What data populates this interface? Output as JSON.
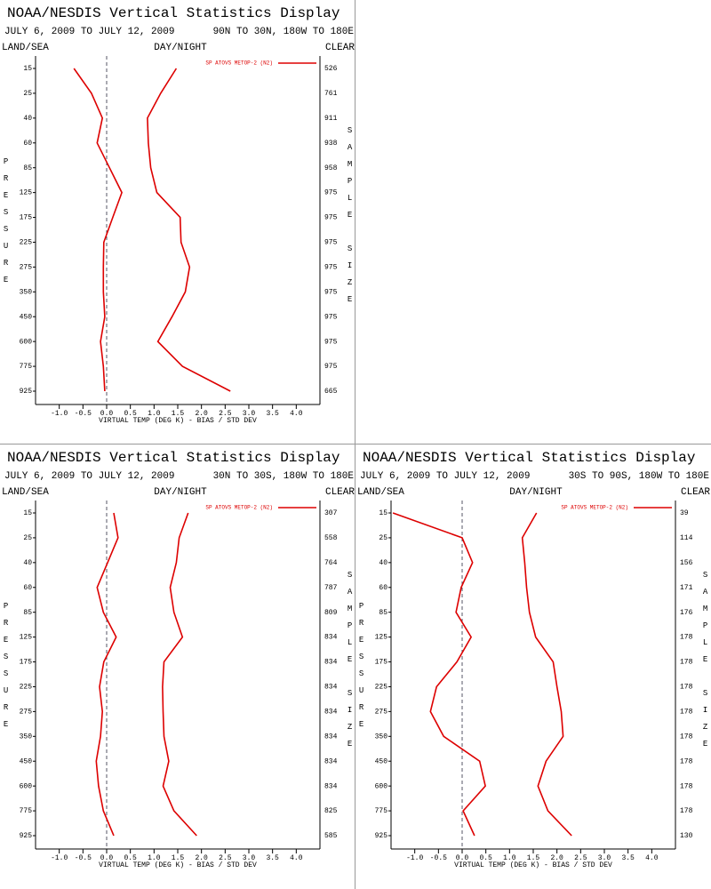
{
  "chart_data": [
    {
      "type": "line",
      "title": "NOAA/NESDIS Vertical Statistics Display",
      "date_range": "JULY 6, 2009 TO JULY 12, 2009",
      "region": "90N TO 30N, 180W TO 180E",
      "land_sea": "LAND/SEA",
      "day_night": "DAY/NIGHT",
      "clear": "CLEAR",
      "y_label": "PRESSURE",
      "y2_label": "SAMPLE SIZE",
      "x_label": "VIRTUAL TEMP (DEG K) - BIAS / STD DEV",
      "categories": [
        "15",
        "25",
        "40",
        "60",
        "85",
        "125",
        "175",
        "225",
        "275",
        "350",
        "450",
        "600",
        "775",
        "925"
      ],
      "sample_sizes": [
        526,
        761,
        911,
        938,
        958,
        975,
        975,
        975,
        975,
        975,
        975,
        975,
        975,
        665
      ],
      "series": [
        {
          "name": "SP ATOVS METOP-2 (N2)",
          "color": "#dd0000",
          "values": [
            -0.69,
            -0.32,
            -0.09,
            -0.2,
            0.06,
            0.32,
            0.13,
            -0.06,
            -0.07,
            -0.07,
            -0.04,
            -0.13,
            -0.07,
            -0.04
          ],
          "std_dev": [
            1.47,
            1.14,
            0.86,
            0.88,
            0.93,
            1.06,
            1.55,
            1.57,
            1.75,
            1.66,
            1.38,
            1.08,
            1.6,
            2.61
          ]
        }
      ],
      "xlim": [
        -1.5,
        4.5
      ],
      "xticks": [
        {
          "value": -1,
          "label": "-1.0"
        },
        -0.5,
        {
          "value": 0,
          "label": "0.0"
        },
        0.5,
        {
          "value": 1,
          "label": "1.0"
        },
        1.5,
        {
          "value": 2,
          "label": "2.0"
        },
        2.5,
        {
          "value": 3,
          "label": "3.0"
        },
        3.5,
        {
          "value": 4,
          "label": "4.0"
        }
      ],
      "zero_line": true,
      "legend": "upper right"
    },
    {
      "type": "line",
      "title": "NOAA/NESDIS Vertical Statistics Display",
      "date_range": "JULY 6, 2009 TO JULY 12, 2009",
      "region": "30N TO 30S, 180W TO 180E",
      "land_sea": "LAND/SEA",
      "day_night": "DAY/NIGHT",
      "clear": "CLEAR",
      "y_label": "PRESSURE",
      "y2_label": "SAMPLE SIZE",
      "x_label": "VIRTUAL TEMP (DEG K) - BIAS / STD DEV",
      "categories": [
        "15",
        "25",
        "40",
        "60",
        "85",
        "125",
        "175",
        "225",
        "275",
        "350",
        "450",
        "600",
        "775",
        "925"
      ],
      "sample_sizes": [
        307,
        558,
        764,
        787,
        809,
        834,
        834,
        834,
        834,
        834,
        834,
        834,
        825,
        585
      ],
      "series": [
        {
          "name": "SP ATOVS METOP-2 (N2)",
          "color": "#dd0000",
          "values": [
            0.15,
            0.24,
            0.02,
            -0.2,
            -0.07,
            0.2,
            -0.06,
            -0.15,
            -0.09,
            -0.13,
            -0.22,
            -0.17,
            -0.07,
            0.15
          ],
          "std_dev": [
            1.72,
            1.53,
            1.47,
            1.34,
            1.42,
            1.6,
            1.21,
            1.18,
            1.19,
            1.21,
            1.31,
            1.19,
            1.42,
            1.9
          ]
        }
      ],
      "xlim": [
        -1.5,
        4.5
      ],
      "xticks": [
        {
          "value": -1,
          "label": "-1.0"
        },
        -0.5,
        {
          "value": 0,
          "label": "0.0"
        },
        0.5,
        {
          "value": 1,
          "label": "1.0"
        },
        1.5,
        {
          "value": 2,
          "label": "2.0"
        },
        2.5,
        {
          "value": 3,
          "label": "3.0"
        },
        3.5,
        {
          "value": 4,
          "label": "4.0"
        }
      ],
      "zero_line": true,
      "legend": "upper right"
    },
    {
      "type": "line",
      "title": "NOAA/NESDIS Vertical Statistics Display",
      "date_range": "JULY 6, 2009 TO JULY 12, 2009",
      "region": "30S TO 90S, 180W TO 180E",
      "land_sea": "LAND/SEA",
      "day_night": "DAY/NIGHT",
      "clear": "CLEAR",
      "y_label": "PRESSURE",
      "y2_label": "SAMPLE SIZE",
      "x_label": "VIRTUAL TEMP (DEG K) - BIAS / STD DEV",
      "categories": [
        "15",
        "25",
        "40",
        "60",
        "85",
        "125",
        "175",
        "225",
        "275",
        "350",
        "450",
        "600",
        "775",
        "925"
      ],
      "sample_sizes": [
        39,
        114,
        156,
        171,
        176,
        178,
        178,
        178,
        178,
        178,
        178,
        178,
        178,
        130
      ],
      "series": [
        {
          "name": "SP ATOVS METOP-2 (N2)",
          "color": "#dd0000",
          "values": [
            -1.46,
            0.0,
            0.22,
            -0.02,
            -0.13,
            0.19,
            -0.11,
            -0.54,
            -0.67,
            -0.39,
            0.37,
            0.49,
            0.02,
            0.26
          ],
          "std_dev": [
            1.57,
            1.27,
            1.32,
            1.36,
            1.42,
            1.55,
            1.92,
            2.0,
            2.09,
            2.13,
            1.77,
            1.6,
            1.81,
            2.31
          ]
        }
      ],
      "xlim": [
        -1.5,
        4.5
      ],
      "xticks": [
        {
          "value": -1,
          "label": "-1.0"
        },
        -0.5,
        {
          "value": 0,
          "label": "0.0"
        },
        0.5,
        {
          "value": 1,
          "label": "1.0"
        },
        1.5,
        {
          "value": 2,
          "label": "2.0"
        },
        2.5,
        {
          "value": 3,
          "label": "3.0"
        },
        3.5,
        {
          "value": 4,
          "label": "4.0"
        }
      ],
      "zero_line": true,
      "legend": "upper right"
    }
  ]
}
